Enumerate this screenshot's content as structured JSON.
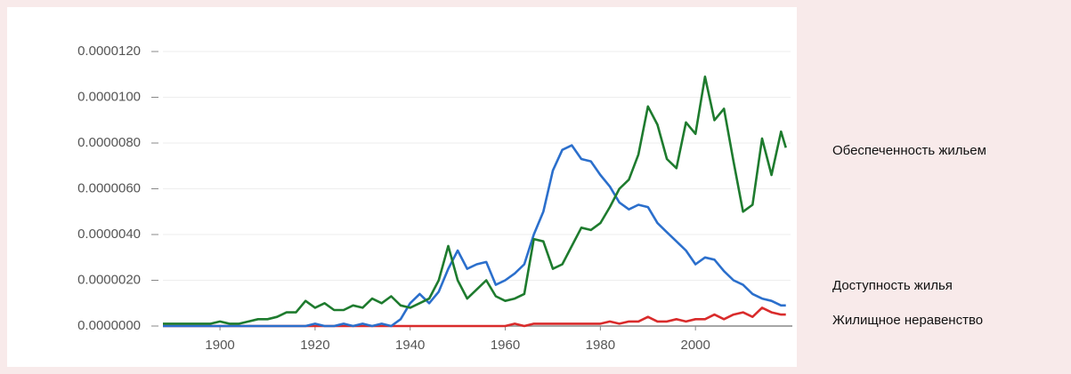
{
  "chart_data": {
    "type": "line",
    "x": [
      1888,
      1890,
      1892,
      1894,
      1896,
      1898,
      1900,
      1902,
      1904,
      1906,
      1908,
      1910,
      1912,
      1914,
      1916,
      1918,
      1920,
      1922,
      1924,
      1926,
      1928,
      1930,
      1932,
      1934,
      1936,
      1938,
      1940,
      1942,
      1944,
      1946,
      1948,
      1950,
      1952,
      1954,
      1956,
      1958,
      1960,
      1962,
      1964,
      1966,
      1968,
      1970,
      1972,
      1974,
      1976,
      1978,
      1980,
      1982,
      1984,
      1986,
      1988,
      1990,
      1992,
      1994,
      1996,
      1998,
      2000,
      2002,
      2004,
      2006,
      2008,
      2010,
      2012,
      2014,
      2016,
      2018,
      2019
    ],
    "xlim": [
      1888,
      2020
    ],
    "xticks": [
      1900,
      1920,
      1940,
      1960,
      1980,
      2000
    ],
    "ylim": [
      0,
      1.2e-05
    ],
    "yticks": [
      {
        "value": 0,
        "label": "0.0000000"
      },
      {
        "value": 2e-06,
        "label": "0.0000020"
      },
      {
        "value": 4e-06,
        "label": "0.0000040"
      },
      {
        "value": 6e-06,
        "label": "0.0000060"
      },
      {
        "value": 8e-06,
        "label": "0.0000080"
      },
      {
        "value": 1e-05,
        "label": "0.0000100"
      },
      {
        "value": 1.2e-05,
        "label": "0.0000120"
      }
    ],
    "grid": true,
    "series": [
      {
        "name": "Обеспеченность жильем",
        "color": "#1e7b2e",
        "values": [
          1e-07,
          1e-07,
          1e-07,
          1e-07,
          1e-07,
          1e-07,
          2e-07,
          1e-07,
          1e-07,
          2e-07,
          3e-07,
          3e-07,
          4e-07,
          6e-07,
          6e-07,
          1.1e-06,
          8e-07,
          1e-06,
          7e-07,
          7e-07,
          9e-07,
          8e-07,
          1.2e-06,
          1e-06,
          1.3e-06,
          9e-07,
          8e-07,
          1e-06,
          1.2e-06,
          2e-06,
          3.5e-06,
          2e-06,
          1.2e-06,
          1.6e-06,
          2e-06,
          1.3e-06,
          1.1e-06,
          1.2e-06,
          1.4e-06,
          3.8e-06,
          3.7e-06,
          2.5e-06,
          2.7e-06,
          3.5e-06,
          4.3e-06,
          4.2e-06,
          4.5e-06,
          5.2e-06,
          6e-06,
          6.4e-06,
          7.5e-06,
          9.6e-06,
          8.8e-06,
          7.3e-06,
          6.9e-06,
          8.9e-06,
          8.4e-06,
          1.09e-05,
          9e-06,
          9.5e-06,
          7.2e-06,
          5e-06,
          5.3e-06,
          8.2e-06,
          6.6e-06,
          8.5e-06,
          7.8e-06
        ]
      },
      {
        "name": "Доступность жилья",
        "color": "#2b6fcc",
        "values": [
          0,
          0,
          0,
          0,
          0,
          0,
          0,
          0,
          0,
          0,
          0,
          0,
          0,
          0,
          0,
          0,
          1e-07,
          0,
          0,
          1e-07,
          0,
          1e-07,
          0,
          1e-07,
          0,
          3e-07,
          1e-06,
          1.4e-06,
          1e-06,
          1.5e-06,
          2.5e-06,
          3.3e-06,
          2.5e-06,
          2.7e-06,
          2.8e-06,
          1.8e-06,
          2e-06,
          2.3e-06,
          2.7e-06,
          4e-06,
          5e-06,
          6.8e-06,
          7.7e-06,
          7.9e-06,
          7.3e-06,
          7.2e-06,
          6.6e-06,
          6.1e-06,
          5.4e-06,
          5.1e-06,
          5.3e-06,
          5.2e-06,
          4.5e-06,
          4.1e-06,
          3.7e-06,
          3.3e-06,
          2.7e-06,
          3e-06,
          2.9e-06,
          2.4e-06,
          2e-06,
          1.8e-06,
          1.4e-06,
          1.2e-06,
          1.1e-06,
          9e-07,
          9e-07
        ]
      },
      {
        "name": "Жилищное неравенство",
        "color": "#d92b2b",
        "values": [
          0,
          0,
          0,
          0,
          0,
          0,
          0,
          0,
          0,
          0,
          0,
          0,
          0,
          0,
          0,
          0,
          0,
          0,
          0,
          0,
          0,
          0,
          0,
          0,
          0,
          0,
          0,
          0,
          0,
          0,
          0,
          0,
          0,
          0,
          0,
          0,
          0,
          1e-07,
          0,
          1e-07,
          1e-07,
          1e-07,
          1e-07,
          1e-07,
          1e-07,
          1e-07,
          1e-07,
          2e-07,
          1e-07,
          2e-07,
          2e-07,
          4e-07,
          2e-07,
          2e-07,
          3e-07,
          2e-07,
          3e-07,
          3e-07,
          5e-07,
          3e-07,
          5e-07,
          6e-07,
          4e-07,
          8e-07,
          6e-07,
          5e-07,
          5e-07
        ]
      }
    ]
  }
}
